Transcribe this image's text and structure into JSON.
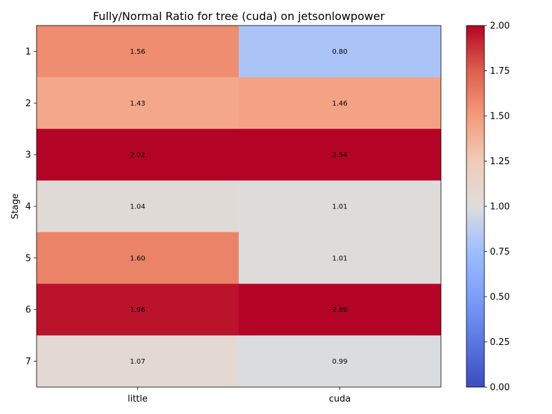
{
  "chart_data": {
    "type": "heatmap",
    "title": "Fully/Normal Ratio for tree (cuda) on jetsonlowpower",
    "xlabel": "",
    "ylabel": "Stage",
    "x_categories": [
      "little",
      "cuda"
    ],
    "y_categories": [
      "1",
      "2",
      "3",
      "4",
      "5",
      "6",
      "7"
    ],
    "values": [
      [
        1.56,
        0.8
      ],
      [
        1.43,
        1.46
      ],
      [
        2.02,
        2.54
      ],
      [
        1.04,
        1.01
      ],
      [
        1.6,
        1.01
      ],
      [
        1.96,
        2.89
      ],
      [
        1.07,
        0.99
      ]
    ],
    "cell_labels": [
      [
        "1.56",
        "0.80"
      ],
      [
        "1.43",
        "1.46"
      ],
      [
        "2.02",
        "2.54"
      ],
      [
        "1.04",
        "1.01"
      ],
      [
        "1.60",
        "1.01"
      ],
      [
        "1.96",
        "2.89"
      ],
      [
        "1.07",
        "0.99"
      ]
    ],
    "colormap": "coolwarm",
    "vmin": 0,
    "vmax": 2,
    "colorbar_ticks": [
      "0.00",
      "0.25",
      "0.50",
      "0.75",
      "1.00",
      "1.25",
      "1.50",
      "1.75",
      "2.00"
    ],
    "colorbar_tick_values": [
      0,
      0.25,
      0.5,
      0.75,
      1.0,
      1.25,
      1.5,
      1.75,
      2.0
    ]
  }
}
